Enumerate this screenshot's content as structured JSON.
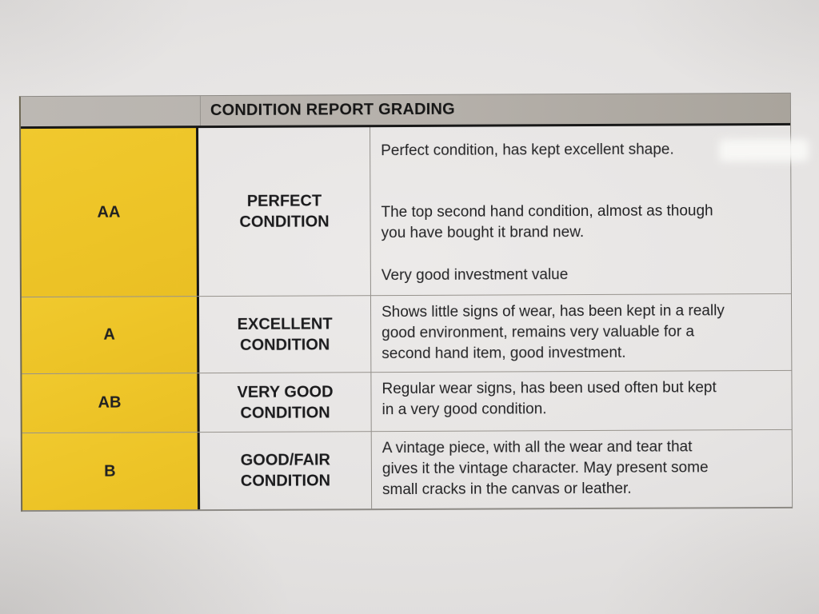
{
  "table": {
    "title": "CONDITION REPORT GRADING",
    "rows": [
      {
        "grade": "AA",
        "condition": "PERFECT\nCONDITION",
        "paragraphs": [
          "Perfect condition, has kept excellent shape.",
          "The top second hand condition, almost as though\nyou have bought it brand new.",
          "Very good investment value"
        ]
      },
      {
        "grade": "A",
        "condition": "EXCELLENT\nCONDITION",
        "paragraphs": [
          "Shows little signs of wear, has been kept in a really\ngood environment, remains very valuable for a\nsecond hand item, good investment."
        ]
      },
      {
        "grade": "AB",
        "condition": "VERY GOOD\nCONDITION",
        "paragraphs": [
          "Regular wear signs, has been used often but kept\nin a very good condition."
        ]
      },
      {
        "grade": "B",
        "condition": "GOOD/FAIR\nCONDITION",
        "paragraphs": [
          "A vintage piece, with all the wear and tear that\ngives it the vintage character. May present some\nsmall cracks in the canvas or leather."
        ]
      }
    ],
    "colors": {
      "grade_column_yellow": "#edc427",
      "header_band_gray": "#b3aea8",
      "divider_black": "#181818",
      "text": "#1d1d1f"
    }
  }
}
